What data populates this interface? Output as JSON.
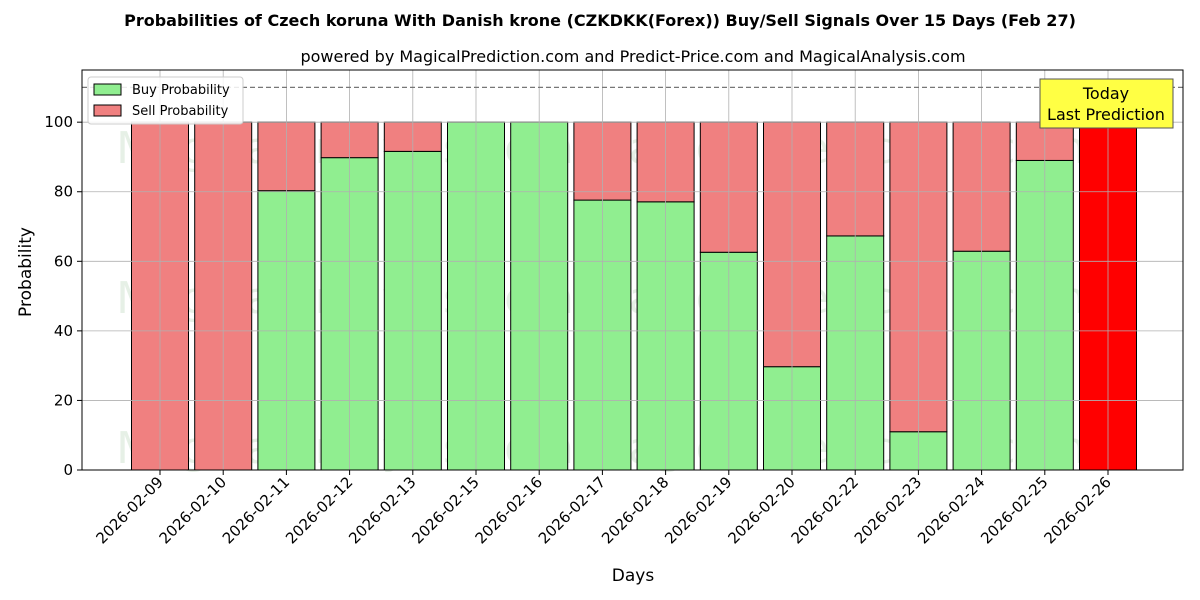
{
  "chart_data": {
    "type": "bar",
    "stacked": true,
    "title": "Probabilities of Czech koruna With Danish krone (CZKDKK(Forex)) Buy/Sell Signals Over 15 Days (Feb 27)",
    "subtitle": "powered by MagicalPrediction.com and Predict-Price.com and MagicalAnalysis.com",
    "xlabel": "Days",
    "ylabel": "Probability",
    "ylim": [
      0,
      115
    ],
    "yticks": [
      0,
      20,
      40,
      60,
      80,
      100
    ],
    "grid": true,
    "legend_position": "top-left",
    "reference_line": 110,
    "categories": [
      "2026-02-09",
      "2026-02-10",
      "2026-02-11",
      "2026-02-12",
      "2026-02-13",
      "2026-02-15",
      "2026-02-16",
      "2026-02-17",
      "2026-02-18",
      "2026-02-19",
      "2026-02-20",
      "2026-02-22",
      "2026-02-23",
      "2026-02-24",
      "2026-02-25",
      "2026-02-26"
    ],
    "series": [
      {
        "name": "Buy Probability",
        "color": "#90ee90",
        "values": [
          0,
          0,
          80.3,
          89.8,
          91.6,
          100,
          100,
          77.6,
          77.1,
          62.6,
          29.7,
          67.3,
          11.0,
          62.9,
          89.0,
          0
        ]
      },
      {
        "name": "Sell Probability",
        "color": "#f08080",
        "values": [
          100,
          100,
          19.7,
          10.2,
          8.4,
          0,
          0,
          22.4,
          22.9,
          37.4,
          70.3,
          32.7,
          89.0,
          37.1,
          11.0,
          100
        ]
      }
    ],
    "highlight": {
      "index": 15,
      "color": "#ff0000"
    },
    "annotation": {
      "lines": [
        "Today",
        "Last Prediction"
      ],
      "background": "#ffff44"
    },
    "watermarks": [
      "MagicalAnalysis.com",
      "MagicalPrediction.com"
    ]
  }
}
